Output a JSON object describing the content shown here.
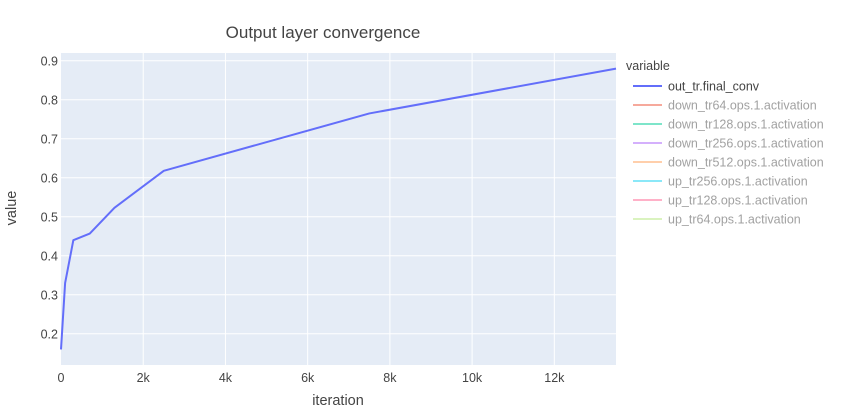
{
  "chart_data": {
    "type": "line",
    "title": "Output layer convergence",
    "xlabel": "iteration",
    "ylabel": "value",
    "xlim": [
      0,
      13500
    ],
    "ylim": [
      0.12,
      0.92
    ],
    "xticks": [
      0,
      2000,
      4000,
      6000,
      8000,
      10000,
      12000
    ],
    "xtick_labels": [
      "0",
      "2k",
      "4k",
      "6k",
      "8k",
      "10k",
      "12k"
    ],
    "yticks": [
      0.2,
      0.3,
      0.4,
      0.5,
      0.6,
      0.7,
      0.8,
      0.9
    ],
    "ytick_labels": [
      "0.2",
      "0.3",
      "0.4",
      "0.5",
      "0.6",
      "0.7",
      "0.8",
      "0.9"
    ],
    "grid": true,
    "legend_title": "variable",
    "legend_position": "right",
    "series": [
      {
        "name": "out_tr.final_conv",
        "color": "#636efa",
        "visible": true,
        "x": [
          0,
          100,
          300,
          700,
          1300,
          2500,
          7500,
          13500
        ],
        "y": [
          0.16,
          0.33,
          0.44,
          0.457,
          0.523,
          0.618,
          0.765,
          0.88
        ]
      },
      {
        "name": "down_tr64.ops.1.activation",
        "color": "#ef553b",
        "visible": false
      },
      {
        "name": "down_tr128.ops.1.activation",
        "color": "#00cc96",
        "visible": false
      },
      {
        "name": "down_tr256.ops.1.activation",
        "color": "#ab63fa",
        "visible": false
      },
      {
        "name": "down_tr512.ops.1.activation",
        "color": "#ffa15a",
        "visible": false
      },
      {
        "name": "up_tr256.ops.1.activation",
        "color": "#19d3f3",
        "visible": false
      },
      {
        "name": "up_tr128.ops.1.activation",
        "color": "#ff6692",
        "visible": false
      },
      {
        "name": "up_tr64.ops.1.activation",
        "color": "#b6e880",
        "visible": false
      }
    ],
    "colors": {
      "plot_background": "#e5ecf6",
      "grid": "#ffffff",
      "text": "#444444",
      "muted_text": "#a2a2a2"
    }
  }
}
